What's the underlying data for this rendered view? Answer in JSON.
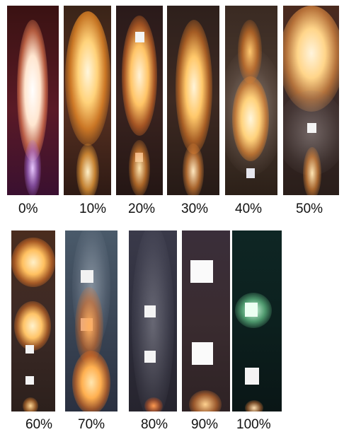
{
  "figure": {
    "rows": [
      {
        "panels": [
          {
            "label": "0%"
          },
          {
            "label": "10%"
          },
          {
            "label": "20%"
          },
          {
            "label": "30%"
          },
          {
            "label": "40%"
          },
          {
            "label": "50%"
          }
        ]
      },
      {
        "panels": [
          {
            "label": "60%"
          },
          {
            "label": "70%"
          },
          {
            "label": "80%"
          },
          {
            "label": "90%"
          },
          {
            "label": "100%"
          }
        ]
      }
    ]
  }
}
